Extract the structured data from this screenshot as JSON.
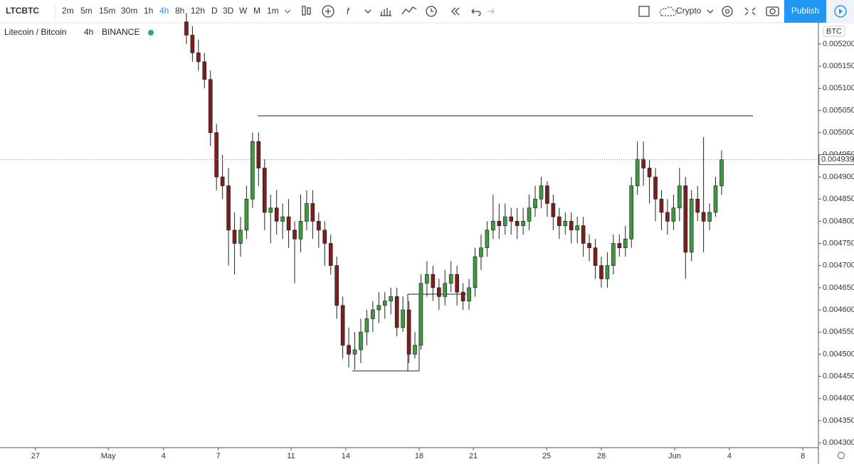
{
  "toolbar": {
    "symbol": "LTCBTC",
    "intervals": [
      "2m",
      "5m",
      "15m",
      "30m",
      "1h",
      "4h",
      "8h",
      "12h",
      "D",
      "3D",
      "W",
      "M",
      "1m"
    ],
    "active_interval": "4h",
    "layout_name": "Crypto",
    "publish": "Publish"
  },
  "legend": {
    "pair": "Litecoin / Bitcoin",
    "interval": "4h",
    "exchange": "BINANCE"
  },
  "price_axis_currency": "BTC",
  "chart_data": {
    "type": "candlestick",
    "up_color": "#3f9a3f",
    "down_color": "#7d1f1f",
    "wick_color": "#222222",
    "categories": [
      null,
      null,
      null,
      null,
      null,
      null,
      null,
      null,
      null,
      null,
      null,
      null,
      null,
      null,
      null,
      null,
      null,
      null,
      null,
      null,
      null,
      null,
      null,
      null,
      null,
      null,
      null,
      null,
      null,
      null,
      null,
      null,
      null,
      null,
      null,
      null,
      null,
      null,
      null,
      null,
      null,
      null,
      null,
      null,
      null,
      null,
      null,
      null,
      null,
      null,
      null,
      null,
      null,
      null,
      null,
      null,
      null,
      null,
      null,
      null,
      null,
      null,
      null,
      null,
      null,
      null,
      null,
      null,
      null,
      null,
      null,
      null,
      null,
      null,
      null,
      null,
      null,
      null,
      null,
      null,
      null,
      null,
      null,
      null,
      null,
      null,
      null,
      null,
      null,
      null
    ],
    "open": [
      0.00525,
      0.00522,
      0.00518,
      0.00516,
      0.00512,
      0.005,
      0.0049,
      0.00488,
      0.00478,
      0.00475,
      0.00478,
      0.00485,
      0.00498,
      0.00492,
      0.00482,
      0.00483,
      0.0048,
      0.00481,
      0.00478,
      0.00476,
      0.0048,
      0.00484,
      0.0048,
      0.00478,
      0.00475,
      0.0047,
      0.00461,
      0.00452,
      0.0045,
      0.00451,
      0.00455,
      0.00458,
      0.0046,
      0.00461,
      0.00462,
      0.00463,
      0.00456,
      0.0046,
      0.0045,
      0.00452,
      0.00466,
      0.00468,
      0.00465,
      0.00463,
      0.00466,
      0.00468,
      0.00464,
      0.00462,
      0.00465,
      0.00472,
      0.00474,
      0.00478,
      0.0048,
      0.00479,
      0.00481,
      0.0048,
      0.00479,
      0.0048,
      0.00483,
      0.00485,
      0.00488,
      0.00484,
      0.00481,
      0.00479,
      0.0048,
      0.00478,
      0.00479,
      0.00475,
      0.00474,
      0.0047,
      0.00467,
      0.0047,
      0.00475,
      0.00474,
      0.00476,
      0.00488,
      0.00494,
      0.00492,
      0.0049,
      0.00485,
      0.00482,
      0.0048,
      0.00483,
      0.00488,
      0.00473,
      0.00485,
      0.00482,
      0.0048,
      0.00482,
      0.00488
    ],
    "high": [
      0.00527,
      0.00524,
      0.00521,
      0.00518,
      0.00514,
      0.00502,
      0.00495,
      0.00492,
      0.00482,
      0.00481,
      0.00488,
      0.005,
      0.005,
      0.00494,
      0.00486,
      0.00487,
      0.00484,
      0.00485,
      0.0048,
      0.00486,
      0.00487,
      0.00487,
      0.00482,
      0.0048,
      0.00477,
      0.00472,
      0.00463,
      0.00456,
      0.00455,
      0.00458,
      0.0046,
      0.00462,
      0.00464,
      0.00464,
      0.00465,
      0.00465,
      0.00463,
      0.00462,
      0.00455,
      0.00468,
      0.00471,
      0.0047,
      0.00467,
      0.00469,
      0.00471,
      0.0047,
      0.00466,
      0.00467,
      0.00474,
      0.00477,
      0.0048,
      0.00486,
      0.00484,
      0.00484,
      0.00483,
      0.00483,
      0.00483,
      0.00486,
      0.00488,
      0.0049,
      0.00489,
      0.00486,
      0.00483,
      0.00482,
      0.00482,
      0.00481,
      0.00481,
      0.00477,
      0.00476,
      0.00472,
      0.00473,
      0.00477,
      0.00477,
      0.00479,
      0.0049,
      0.00498,
      0.00498,
      0.00494,
      0.00492,
      0.00487,
      0.00485,
      0.00486,
      0.00492,
      0.0049,
      0.00487,
      0.00488,
      0.00499,
      0.00484,
      0.0049,
      0.00496
    ],
    "low": [
      0.0052,
      0.00516,
      0.00514,
      0.0051,
      0.00497,
      0.00487,
      0.00485,
      0.0047,
      0.00468,
      0.00472,
      0.00476,
      0.00483,
      0.00488,
      0.00478,
      0.00475,
      0.00477,
      0.00476,
      0.00474,
      0.00466,
      0.00473,
      0.00478,
      0.00476,
      0.00474,
      0.0047,
      0.00468,
      0.00458,
      0.00449,
      0.00447,
      0.004465,
      0.00448,
      0.00452,
      0.00455,
      0.00457,
      0.00458,
      0.00459,
      0.00454,
      0.00455,
      0.00448,
      0.00449,
      0.00451,
      0.00463,
      0.00462,
      0.0046,
      0.00461,
      0.00464,
      0.00461,
      0.0046,
      0.0046,
      0.00463,
      0.00469,
      0.00472,
      0.00476,
      0.00476,
      0.00477,
      0.00477,
      0.00476,
      0.00477,
      0.00478,
      0.00481,
      0.00483,
      0.00481,
      0.00478,
      0.00476,
      0.00477,
      0.00475,
      0.00475,
      0.00472,
      0.00471,
      0.00467,
      0.00465,
      0.00465,
      0.00468,
      0.00472,
      0.00472,
      0.00474,
      0.00486,
      0.00488,
      0.00484,
      0.0048,
      0.00478,
      0.00477,
      0.00478,
      0.0048,
      0.00467,
      0.00471,
      0.0048,
      0.00473,
      0.00478,
      0.00481,
      0.00486
    ],
    "close": [
      0.00522,
      0.00518,
      0.00516,
      0.00512,
      0.005,
      0.0049,
      0.00488,
      0.00478,
      0.00475,
      0.00478,
      0.00485,
      0.00498,
      0.00492,
      0.00482,
      0.00483,
      0.0048,
      0.00481,
      0.00478,
      0.00476,
      0.0048,
      0.00484,
      0.0048,
      0.00478,
      0.00475,
      0.0047,
      0.00461,
      0.00452,
      0.0045,
      0.00451,
      0.00455,
      0.00458,
      0.0046,
      0.00461,
      0.00462,
      0.00463,
      0.00456,
      0.0046,
      0.0045,
      0.00452,
      0.00466,
      0.00468,
      0.00465,
      0.00463,
      0.00466,
      0.00468,
      0.00464,
      0.00462,
      0.00465,
      0.00472,
      0.00474,
      0.00478,
      0.0048,
      0.00479,
      0.00481,
      0.0048,
      0.00479,
      0.0048,
      0.00483,
      0.00485,
      0.00488,
      0.00484,
      0.00481,
      0.00479,
      0.0048,
      0.00478,
      0.00479,
      0.00475,
      0.00474,
      0.0047,
      0.00467,
      0.0047,
      0.00475,
      0.00474,
      0.00476,
      0.00488,
      0.00494,
      0.00492,
      0.0049,
      0.00485,
      0.00482,
      0.0048,
      0.00483,
      0.00488,
      0.00473,
      0.00485,
      0.00482,
      0.0048,
      0.00482,
      0.00488,
      0.004939
    ],
    "xlim": [
      -31.0,
      105.1
    ],
    "xticks": [
      {
        "value": -25.1,
        "label": "27"
      },
      {
        "value": -13.0,
        "label": "May"
      },
      {
        "value": -3.8,
        "label": "4"
      },
      {
        "value": 5.3,
        "label": "7"
      },
      {
        "value": 17.4,
        "label": "11"
      },
      {
        "value": 26.5,
        "label": "14"
      },
      {
        "value": 38.7,
        "label": "18"
      },
      {
        "value": 47.7,
        "label": "21"
      },
      {
        "value": 59.9,
        "label": "25"
      },
      {
        "value": 69.0,
        "label": "28"
      },
      {
        "value": 81.2,
        "label": "Jun"
      },
      {
        "value": 90.3,
        "label": "4"
      },
      {
        "value": 102.5,
        "label": "8"
      }
    ],
    "ylim": [
      0.004289,
      0.005248
    ],
    "yticks": [
      {
        "value": 0.0043,
        "label": "0.004300"
      },
      {
        "value": 0.00435,
        "label": "0.004350"
      },
      {
        "value": 0.0044,
        "label": "0.004400"
      },
      {
        "value": 0.00445,
        "label": "0.004450"
      },
      {
        "value": 0.0045,
        "label": "0.004500"
      },
      {
        "value": 0.00455,
        "label": "0.004550"
      },
      {
        "value": 0.0046,
        "label": "0.004600"
      },
      {
        "value": 0.00465,
        "label": "0.004650"
      },
      {
        "value": 0.0047,
        "label": "0.004700"
      },
      {
        "value": 0.00475,
        "label": "0.004750"
      },
      {
        "value": 0.0048,
        "label": "0.004800"
      },
      {
        "value": 0.00485,
        "label": "0.004850"
      },
      {
        "value": 0.0049,
        "label": "0.004900"
      },
      {
        "value": 0.00495,
        "label": "0.004950"
      },
      {
        "value": 0.005,
        "label": "0.005000"
      },
      {
        "value": 0.00505,
        "label": "0.005050"
      },
      {
        "value": 0.0051,
        "label": "0.005100"
      },
      {
        "value": 0.00515,
        "label": "0.005150"
      },
      {
        "value": 0.0052,
        "label": "0.005200"
      }
    ],
    "grid": false
  }
}
